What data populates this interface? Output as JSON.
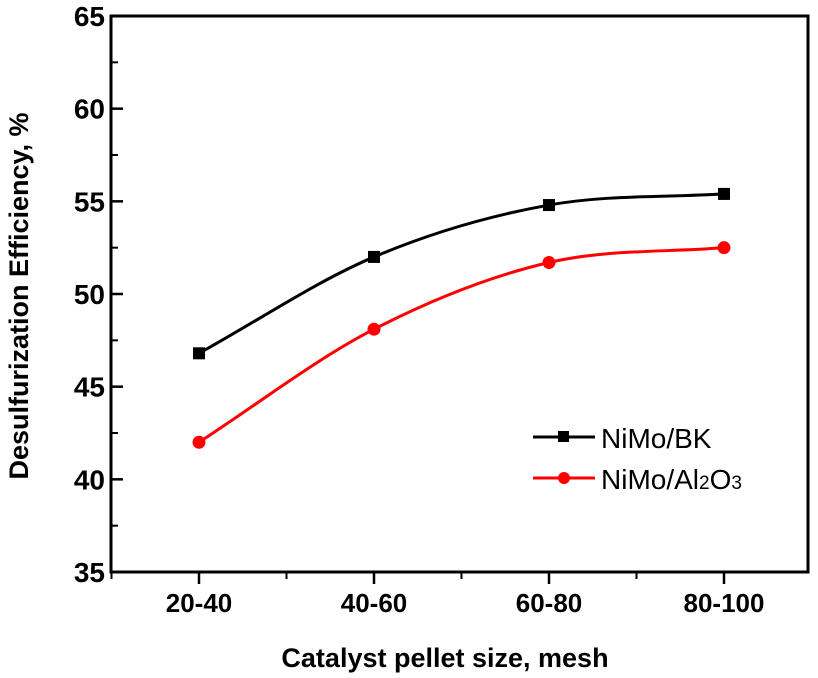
{
  "chart_data": {
    "type": "line",
    "title": "",
    "xlabel": "Catalyst pellet size, mesh",
    "ylabel": "Desulfurization Efficiency, %",
    "categories": [
      "20-40",
      "40-60",
      "60-80",
      "80-100"
    ],
    "ylim": [
      35,
      65
    ],
    "yticks": [
      "35",
      "40",
      "45",
      "50",
      "55",
      "60",
      "65"
    ],
    "grid": false,
    "legend_position": "right",
    "series": [
      {
        "name": "NiMo/BK",
        "values": [
          46.8,
          52.0,
          54.8,
          55.4
        ],
        "color": "#000000",
        "marker": "square"
      },
      {
        "name": "NiMo/Al2O3",
        "name_main": "NiMo/Al",
        "name_sub1": "2",
        "name_mid": "O",
        "name_sub2": "3",
        "values": [
          42.0,
          48.1,
          51.7,
          52.5
        ],
        "color": "#ff0000",
        "marker": "circle"
      }
    ]
  }
}
